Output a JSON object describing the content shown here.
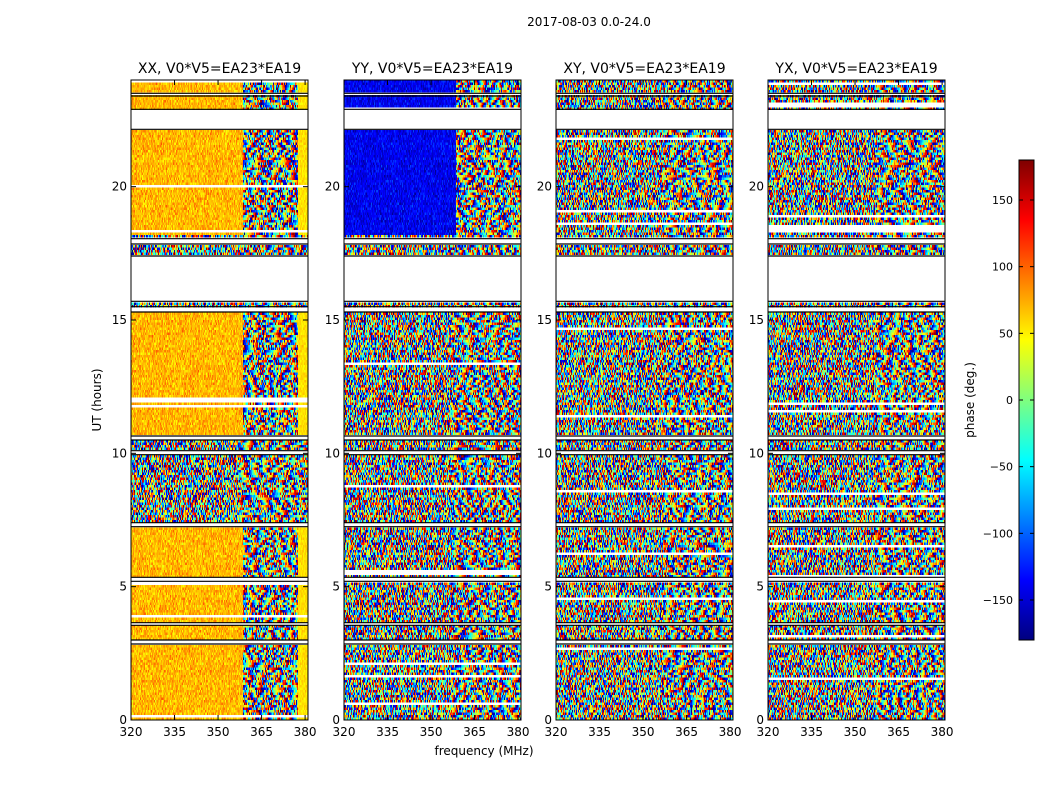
{
  "figure": {
    "suptitle": "2017-08-03 0.0-24.0",
    "ylabel": "UT (hours)",
    "xlabel": "frequency (MHz)"
  },
  "chart_data": {
    "type": "heatmap",
    "panels": [
      {
        "title": "XX, V0*V5=EA23*EA19",
        "bias": 70,
        "bias_regions": [
          [
            0,
            3.6
          ],
          [
            3.7,
            7.2
          ],
          [
            10.6,
            15.3
          ],
          [
            18.2,
            24.0
          ]
        ],
        "high_freq_yellow": true
      },
      {
        "title": "YY, V0*V5=EA23*EA19",
        "bias": -140,
        "bias_regions": [
          [
            18.2,
            24.0
          ]
        ],
        "high_freq_yellow": false
      },
      {
        "title": "XY, V0*V5=EA23*EA19",
        "bias": null,
        "bias_regions": [],
        "high_freq_yellow": false
      },
      {
        "title": "YX, V0*V5=EA23*EA19",
        "bias": null,
        "bias_regions": [],
        "high_freq_yellow": false
      }
    ],
    "xlim": [
      320,
      381
    ],
    "ylim": [
      0,
      24
    ],
    "xticks": [
      320,
      335,
      350,
      365,
      380
    ],
    "xtick_labels": [
      "320",
      "335",
      "350",
      "365",
      "380"
    ],
    "yticks": [
      0,
      5,
      10,
      15,
      20
    ],
    "ytick_labels": [
      "0",
      "5",
      "10",
      "15",
      "20"
    ],
    "white_gaps_hours": [
      [
        2.85,
        3.0
      ],
      [
        3.55,
        3.65
      ],
      [
        5.2,
        5.35
      ],
      [
        7.25,
        7.4
      ],
      [
        9.95,
        10.1
      ],
      [
        10.5,
        10.65
      ],
      [
        15.3,
        15.5
      ],
      [
        15.7,
        17.4
      ],
      [
        17.85,
        18.05
      ],
      [
        22.15,
        22.9
      ],
      [
        23.4,
        23.5
      ]
    ],
    "colorbar": {
      "label": "phase (deg.)",
      "range": [
        -180,
        180
      ],
      "ticks": [
        -150,
        -100,
        -50,
        0,
        50,
        100,
        150
      ],
      "tick_labels": [
        "−150",
        "−100",
        "−50",
        "0",
        "50",
        "100",
        "150"
      ],
      "colormap": "jet",
      "stops": [
        "#00007f",
        "#0000ff",
        "#007fff",
        "#00ffff",
        "#7fff7f",
        "#ffff00",
        "#ff7f00",
        "#ff0000",
        "#7f0000"
      ]
    }
  }
}
